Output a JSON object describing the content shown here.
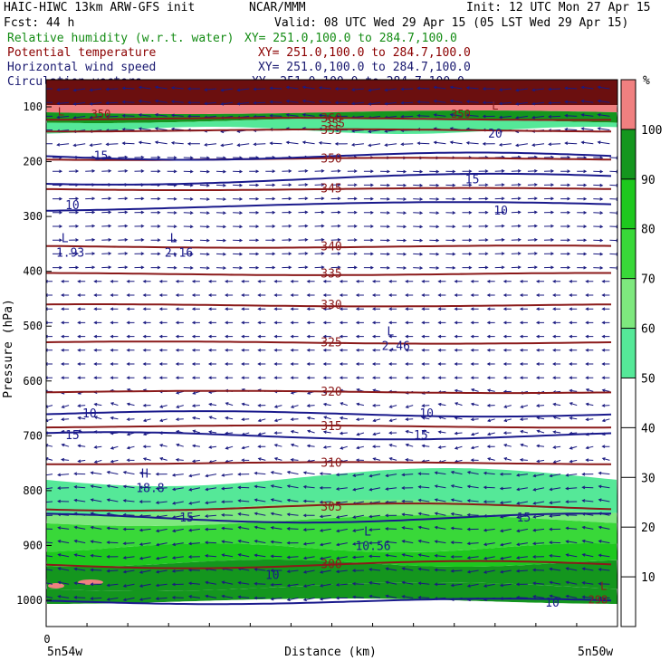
{
  "header": {
    "line1_left": "HAIC-HIWC 13km ARW-GFS init",
    "line1_mid": "NCAR/MMM",
    "line1_right": "Init: 12 UTC Mon 27 Apr 15",
    "line2_left": "Fcst:   44 h",
    "line2_right": "Valid: 08 UTC Wed 29 Apr 15 (05 LST Wed 29 Apr 15)"
  },
  "fields": [
    {
      "name": "Relative humidity (w.r.t. water)",
      "xy": "XY= 251.0,100.0 to 284.7,100.0",
      "color": "#148c14"
    },
    {
      "name": "Potential temperature",
      "xy": "XY= 251.0,100.0 to 284.7,100.0",
      "color": "#8b0000"
    },
    {
      "name": "Horizontal wind speed",
      "xy": "XY= 251.0,100.0 to 284.7,100.0",
      "color": "#191970"
    },
    {
      "name": "Circulation vectors",
      "xy": "XY= 251.0,100.0 to 284.7,100.0",
      "color": "#191970"
    }
  ],
  "chart_data": {
    "type": "cross-section",
    "ylabel": "Pressure (hPa)",
    "xlabel": "Distance (km)",
    "x_tick_label": "0",
    "x_start_label": "5n54w",
    "x_end_label": "5n50w",
    "y_ticks": [
      100,
      200,
      300,
      400,
      500,
      600,
      700,
      800,
      900,
      1000
    ],
    "ylim": [
      1050,
      65
    ],
    "colorbar": {
      "unit": "%",
      "ticks": [
        10,
        20,
        30,
        40,
        50,
        60,
        70,
        80,
        90,
        100
      ],
      "bins": [
        {
          "from": 50,
          "to": 60,
          "color": "#55e898"
        },
        {
          "from": 60,
          "to": 70,
          "color": "#7ee87e"
        },
        {
          "from": 70,
          "to": 80,
          "color": "#39d839"
        },
        {
          "from": 80,
          "to": 90,
          "color": "#1ec81e"
        },
        {
          "from": 90,
          "to": 100,
          "color": "#14961e"
        },
        {
          "from": 100,
          "to": 110,
          "color": "#f08080"
        }
      ]
    },
    "theta_contours": [
      {
        "value": "300",
        "p": 935
      },
      {
        "value": "305",
        "p": 830
      },
      {
        "value": "310",
        "p": 750
      },
      {
        "value": "315",
        "p": 683
      },
      {
        "value": "320",
        "p": 620
      },
      {
        "value": "325",
        "p": 530
      },
      {
        "value": "330",
        "p": 462
      },
      {
        "value": "335",
        "p": 405
      },
      {
        "value": "340",
        "p": 355
      },
      {
        "value": "345",
        "p": 250
      },
      {
        "value": "350",
        "p": 195
      },
      {
        "value": "355",
        "p": 143
      },
      {
        "value": "360",
        "p": 122
      }
    ],
    "wind_labels": [
      {
        "text": "15",
        "x": 0.08,
        "p": 190
      },
      {
        "text": "15",
        "x": 0.73,
        "p": 233
      },
      {
        "text": "10",
        "x": 0.03,
        "p": 280
      },
      {
        "text": "10",
        "x": 0.78,
        "p": 290
      },
      {
        "text": "20",
        "x": 0.77,
        "p": 150
      },
      {
        "text": "10",
        "x": 0.06,
        "p": 660
      },
      {
        "text": "10",
        "x": 0.65,
        "p": 660
      },
      {
        "text": "15",
        "x": 0.03,
        "p": 700
      },
      {
        "text": "15",
        "x": 0.64,
        "p": 700
      },
      {
        "text": "15",
        "x": 0.23,
        "p": 850
      },
      {
        "text": "15",
        "x": 0.82,
        "p": 850
      },
      {
        "text": "10",
        "x": 0.38,
        "p": 955
      },
      {
        "text": "10",
        "x": 0.87,
        "p": 1005
      }
    ],
    "extrema": [
      {
        "symbol": "L",
        "value": "1.93",
        "x": 0.02,
        "p": 360
      },
      {
        "symbol": "L",
        "value": "2.16",
        "x": 0.21,
        "p": 360
      },
      {
        "symbol": "L",
        "value": "2.46",
        "x": 0.59,
        "p": 530
      },
      {
        "symbol": "H",
        "value": "18.8",
        "x": 0.16,
        "p": 790
      },
      {
        "symbol": "L",
        "value": "10.56",
        "x": 0.55,
        "p": 895
      }
    ],
    "extra_labels": [
      {
        "text": "350",
        "x": 0.08,
        "p": 114
      },
      {
        "text": "350",
        "x": 0.71,
        "p": 114
      },
      {
        "text": "355",
        "x": 0.49,
        "p": 131
      },
      {
        "text": "L",
        "x": 0.77,
        "p": 99
      },
      {
        "text": "L",
        "x": 0.01,
        "p": 110
      },
      {
        "text": "L",
        "x": 0.96,
        "p": 975
      },
      {
        "text": "298",
        "x": 0.95,
        "p": 1000
      }
    ]
  }
}
